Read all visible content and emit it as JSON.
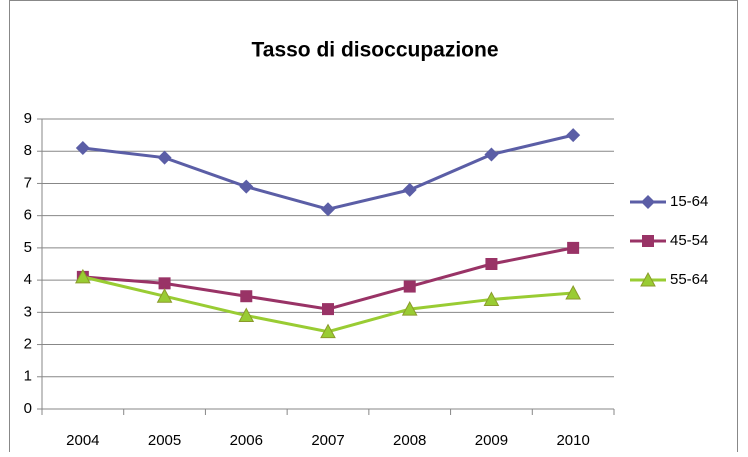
{
  "chart_data": {
    "type": "line",
    "title": "Tasso di disoccupazione",
    "categories": [
      "2004",
      "2005",
      "2006",
      "2007",
      "2008",
      "2009",
      "2010"
    ],
    "series": [
      {
        "name": "15-64",
        "color": "#5b5ea6",
        "marker": "diamond",
        "values": [
          8.1,
          7.8,
          6.9,
          6.2,
          6.8,
          7.9,
          8.5
        ]
      },
      {
        "name": "45-54",
        "color": "#993366",
        "marker": "square",
        "values": [
          4.1,
          3.9,
          3.5,
          3.1,
          3.8,
          4.5,
          5.0
        ]
      },
      {
        "name": "55-64",
        "color": "#99cc33",
        "marker": "triangle",
        "values": [
          4.1,
          3.5,
          2.9,
          2.4,
          3.1,
          3.4,
          3.6
        ]
      }
    ],
    "ylim": [
      0,
      9
    ],
    "yticks": [
      0,
      1,
      2,
      3,
      4,
      5,
      6,
      7,
      8,
      9
    ],
    "grid": true,
    "legend": "right"
  }
}
